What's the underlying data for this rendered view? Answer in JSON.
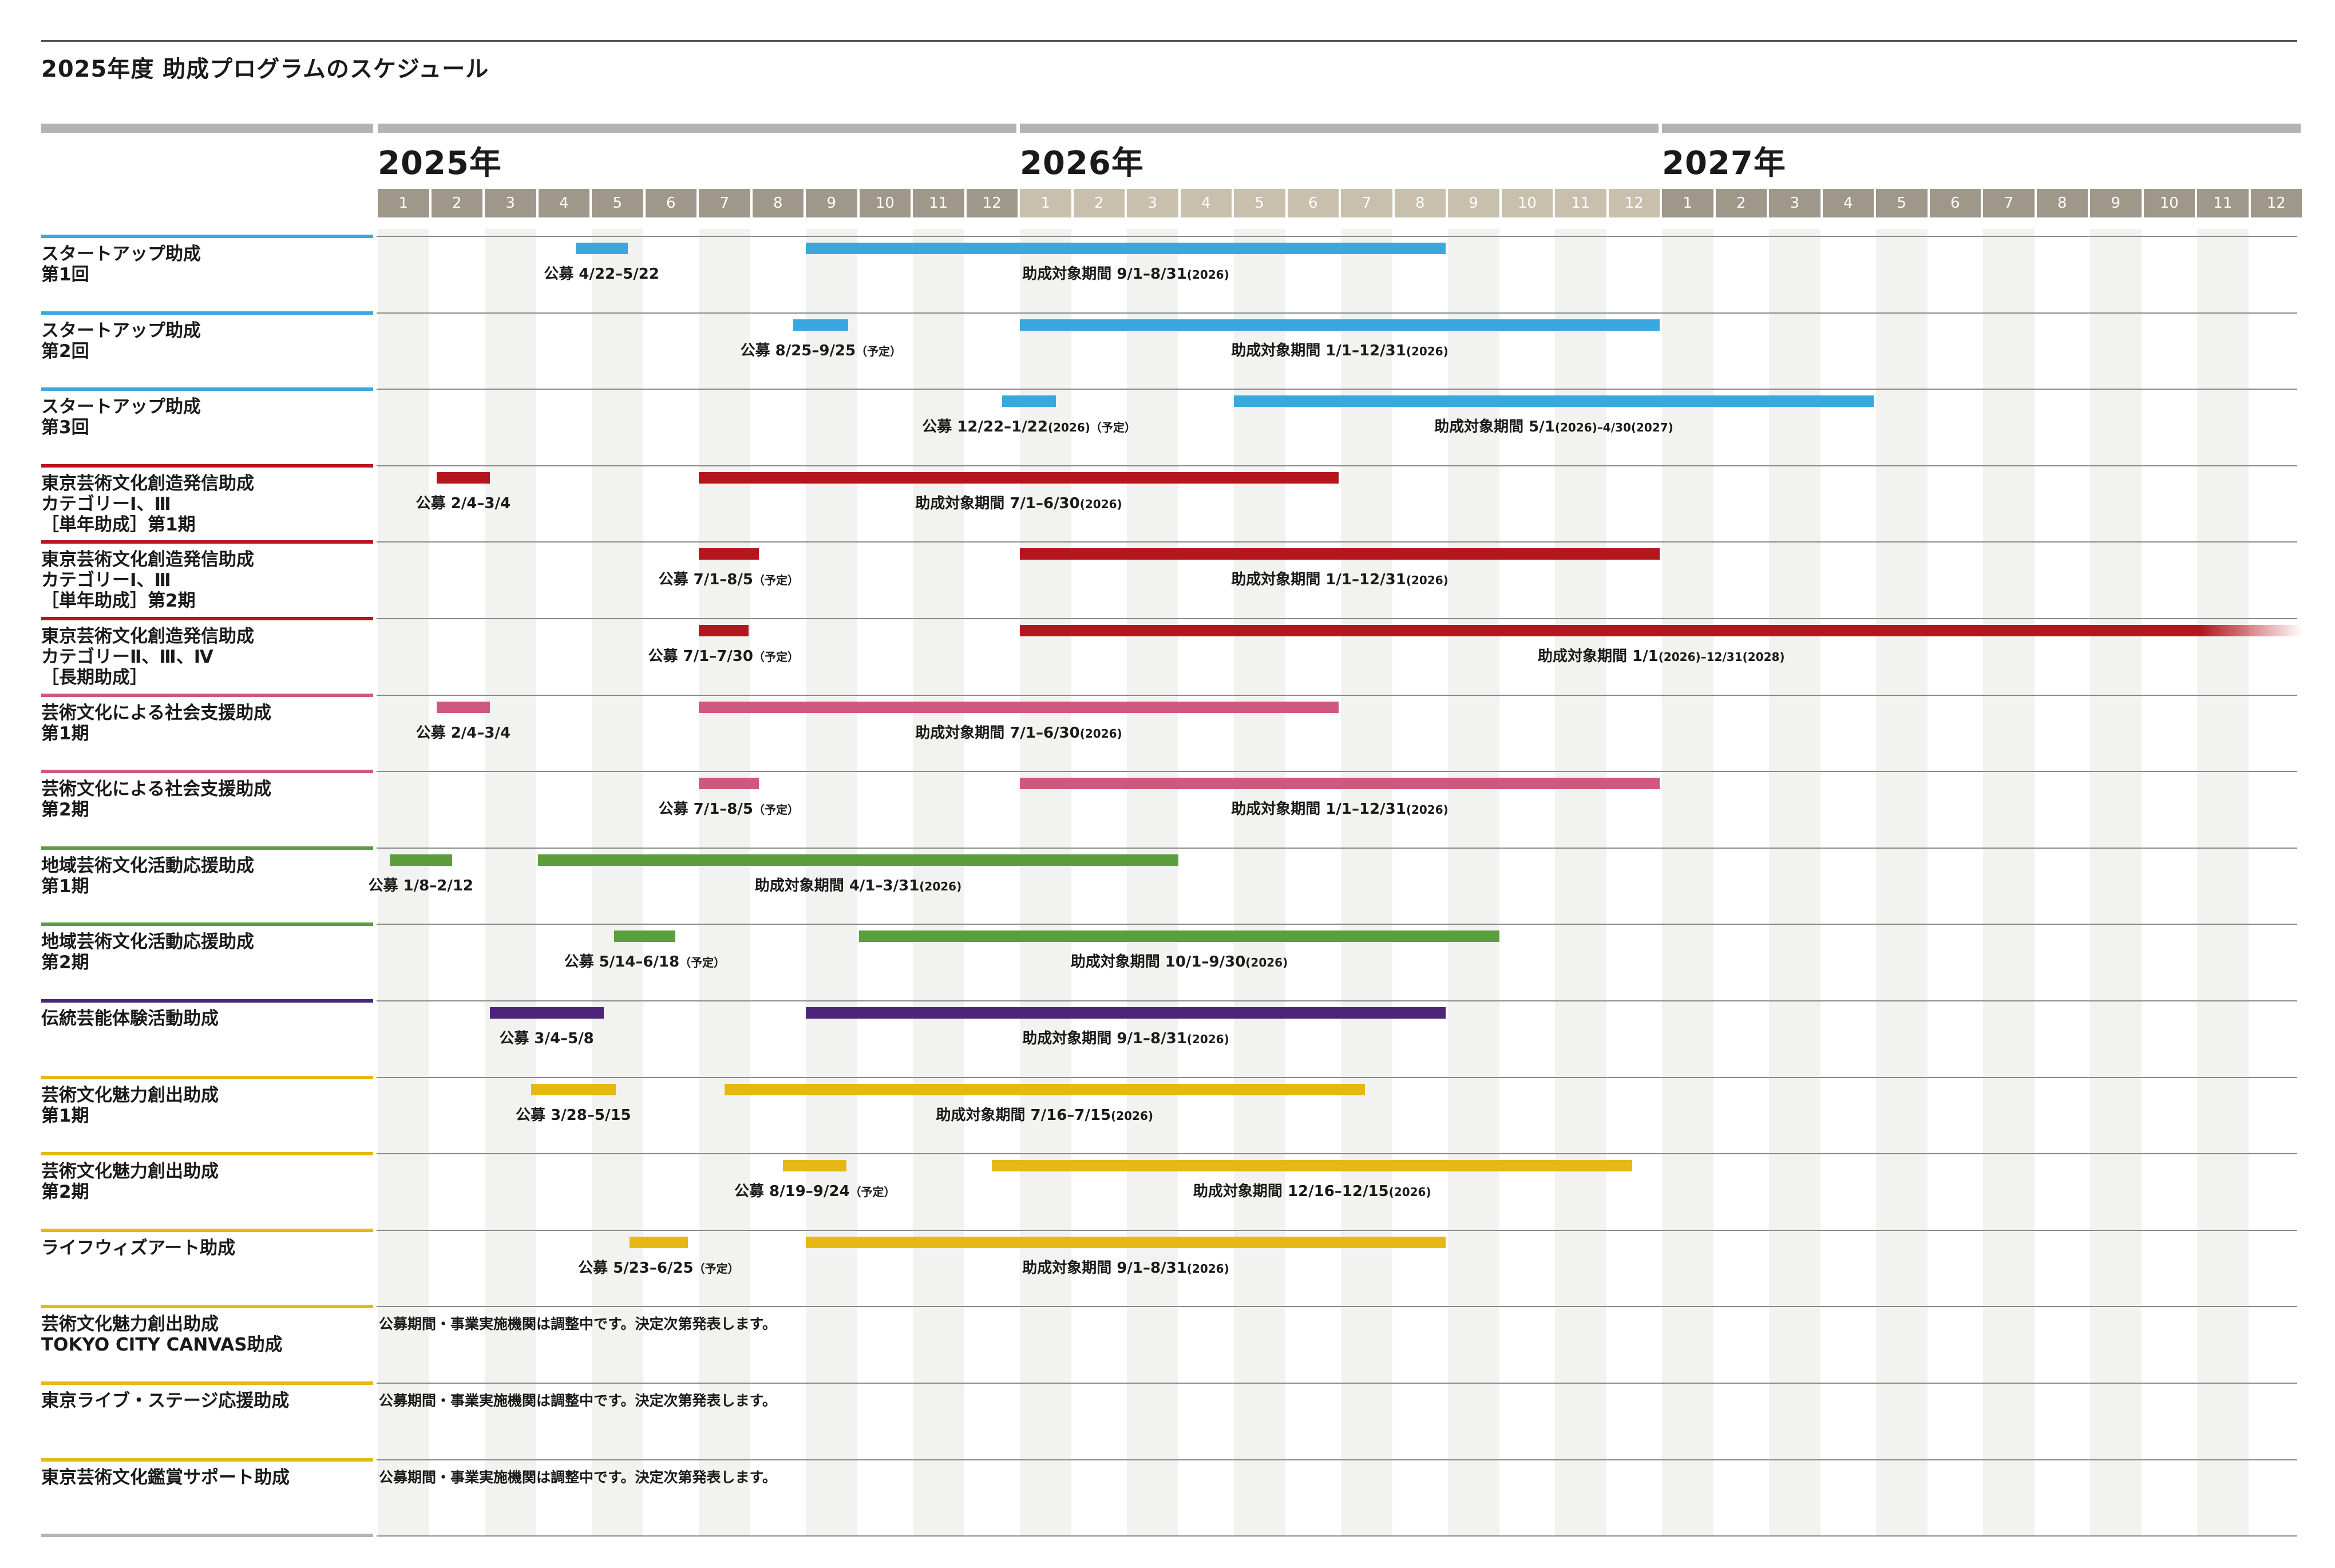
{
  "chart_data": {
    "type": "gantt",
    "title": "2025年度 助成プログラムのスケジュール",
    "years": [
      "2025年",
      "2026年",
      "2027年"
    ],
    "months": [
      "1",
      "2",
      "3",
      "4",
      "5",
      "6",
      "7",
      "8",
      "9",
      "10",
      "11",
      "12"
    ],
    "rows": [
      {
        "name": "スタートアップ助成\n第1回",
        "color": "#3aa8de",
        "bars": [
          {
            "start": "2025-04-22",
            "end": "2025-05-22",
            "label": "公募 4/22–5/22",
            "note": ""
          },
          {
            "start": "2025-09-01",
            "end": "2026-08-31",
            "label": "助成対象期間 9/1–8/31",
            "note": "(2026)"
          }
        ]
      },
      {
        "name": "スタートアップ助成\n第2回",
        "color": "#3aa8de",
        "bars": [
          {
            "start": "2025-08-25",
            "end": "2025-09-25",
            "label": "公募 8/25–9/25",
            "note": "（予定）"
          },
          {
            "start": "2026-01-01",
            "end": "2026-12-31",
            "label": "助成対象期間 1/1–12/31",
            "note": "(2026)"
          }
        ]
      },
      {
        "name": "スタートアップ助成\n第3回",
        "color": "#3aa8de",
        "bars": [
          {
            "start": "2025-12-22",
            "end": "2026-01-22",
            "label": "公募 12/22–1/22",
            "note": "(2026)（予定）"
          },
          {
            "start": "2026-05-01",
            "end": "2027-04-30",
            "label": "助成対象期間 5/1",
            "note": "(2026)–4/30(2027)"
          }
        ]
      },
      {
        "name": "東京芸術文化創造発信助成\nカテゴリーⅠ、Ⅲ\n［単年助成］第1期",
        "color": "#b5161e",
        "bars": [
          {
            "start": "2025-02-04",
            "end": "2025-03-04",
            "label": "公募 2/4–3/4",
            "note": ""
          },
          {
            "start": "2025-07-01",
            "end": "2026-06-30",
            "label": "助成対象期間 7/1–6/30",
            "note": "(2026)"
          }
        ]
      },
      {
        "name": "東京芸術文化創造発信助成\nカテゴリーⅠ、Ⅲ\n［単年助成］第2期",
        "color": "#b5161e",
        "bars": [
          {
            "start": "2025-07-01",
            "end": "2025-08-05",
            "label": "公募 7/1–8/5",
            "note": "（予定）"
          },
          {
            "start": "2026-01-01",
            "end": "2026-12-31",
            "label": "助成対象期間 1/1–12/31",
            "note": "(2026)"
          }
        ]
      },
      {
        "name": "東京芸術文化創造発信助成\nカテゴリーⅡ、Ⅲ、Ⅳ\n［長期助成］",
        "color": "#b5161e",
        "bars": [
          {
            "start": "2025-07-01",
            "end": "2025-07-30",
            "label": "公募 7/1–7/30",
            "note": "（予定）"
          },
          {
            "start": "2026-01-01",
            "end": "2028-12-31",
            "label": "助成対象期間 1/1",
            "note": "(2026)–12/31(2028)",
            "fade": true
          }
        ]
      },
      {
        "name": "芸術文化による社会支援助成\n第1期",
        "color": "#cf5880",
        "bars": [
          {
            "start": "2025-02-04",
            "end": "2025-03-04",
            "label": "公募 2/4–3/4",
            "note": ""
          },
          {
            "start": "2025-07-01",
            "end": "2026-06-30",
            "label": "助成対象期間 7/1–6/30",
            "note": "(2026)"
          }
        ]
      },
      {
        "name": "芸術文化による社会支援助成\n第2期",
        "color": "#cf5880",
        "bars": [
          {
            "start": "2025-07-01",
            "end": "2025-08-05",
            "label": "公募 7/1–8/5",
            "note": "（予定）"
          },
          {
            "start": "2026-01-01",
            "end": "2026-12-31",
            "label": "助成対象期間 1/1–12/31",
            "note": "(2026)"
          }
        ]
      },
      {
        "name": "地域芸術文化活動応援助成\n第1期",
        "color": "#5c9e3c",
        "bars": [
          {
            "start": "2025-01-08",
            "end": "2025-02-12",
            "label": "公募 1/8–2/12",
            "note": ""
          },
          {
            "start": "2025-04-01",
            "end": "2026-03-31",
            "label": "助成対象期間 4/1–3/31",
            "note": "(2026)"
          }
        ]
      },
      {
        "name": "地域芸術文化活動応援助成\n第2期",
        "color": "#5c9e3c",
        "bars": [
          {
            "start": "2025-05-14",
            "end": "2025-06-18",
            "label": "公募 5/14–6/18",
            "note": "（予定）"
          },
          {
            "start": "2025-10-01",
            "end": "2026-09-30",
            "label": "助成対象期間 10/1–9/30",
            "note": "(2026)"
          }
        ]
      },
      {
        "name": "伝統芸能体験活動助成",
        "color": "#4b2578",
        "bars": [
          {
            "start": "2025-03-04",
            "end": "2025-05-08",
            "label": "公募 3/4–5/8",
            "note": ""
          },
          {
            "start": "2025-09-01",
            "end": "2026-08-31",
            "label": "助成対象期間 9/1–8/31",
            "note": "(2026)"
          }
        ]
      },
      {
        "name": "芸術文化魅力創出助成\n第1期",
        "color": "#e5b814",
        "bars": [
          {
            "start": "2025-03-28",
            "end": "2025-05-15",
            "label": "公募 3/28–5/15",
            "note": ""
          },
          {
            "start": "2025-07-16",
            "end": "2026-07-15",
            "label": "助成対象期間 7/16–7/15",
            "note": "(2026)"
          }
        ]
      },
      {
        "name": "芸術文化魅力創出助成\n第2期",
        "color": "#e5b814",
        "bars": [
          {
            "start": "2025-08-19",
            "end": "2025-09-24",
            "label": "公募 8/19–9/24",
            "note": "（予定）"
          },
          {
            "start": "2025-12-16",
            "end": "2026-12-15",
            "label": "助成対象期間 12/16–12/15",
            "note": "(2026)"
          }
        ]
      },
      {
        "name": "ライフウィズアート助成",
        "color": "#e5b814",
        "bars": [
          {
            "start": "2025-05-23",
            "end": "2025-06-25",
            "label": "公募 5/23–6/25",
            "note": "（予定）"
          },
          {
            "start": "2025-09-01",
            "end": "2026-08-31",
            "label": "助成対象期間 9/1–8/31",
            "note": "(2026)"
          }
        ]
      },
      {
        "name": "芸術文化魅力創出助成\nTOKYO CITY CANVAS助成",
        "color": "#e5b814",
        "bars": [],
        "text": "公募期間・事業実施機関は調整中です。決定次第発表します。"
      },
      {
        "name": "東京ライブ・ステージ応援助成",
        "color": "#e5b814",
        "bars": [],
        "text": "公募期間・事業実施機関は調整中です。決定次第発表します。"
      },
      {
        "name": "東京芸術文化鑑賞サポート助成",
        "color": "#e5b814",
        "bars": [],
        "text": "公募期間・事業実施機関は調整中です。決定次第発表します。"
      }
    ],
    "colors": {
      "month_header": [
        "#9f978a",
        "#c8bfad",
        "#9f978a"
      ],
      "shade": "#f2f2f0",
      "year_bar": "#b3b3b3"
    }
  }
}
